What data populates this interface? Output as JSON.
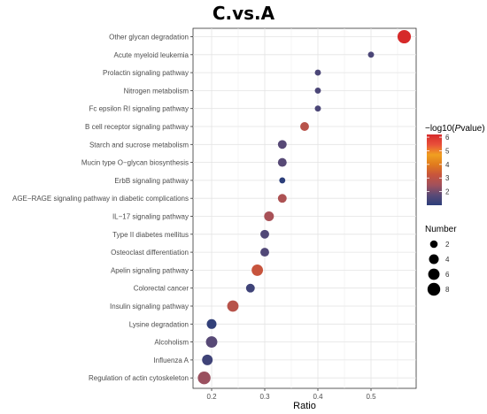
{
  "chart_data": {
    "type": "scatter",
    "title": "C.vs.A",
    "xlabel": "Ratio",
    "ylabel": "",
    "xlim": [
      0.165,
      0.585
    ],
    "x_ticks": [
      {
        "value": 0.2,
        "label": "0.2"
      },
      {
        "value": 0.3,
        "label": "0.3"
      },
      {
        "value": 0.4,
        "label": "0.4"
      },
      {
        "value": 0.5,
        "label": "0.5"
      }
    ],
    "grid": true,
    "points": [
      {
        "term": "Other glycan degradation",
        "ratio": 0.5625,
        "number": 9,
        "neglog10p": 6.2
      },
      {
        "term": "Acute myeloid leukemia",
        "ratio": 0.5,
        "number": 1,
        "neglog10p": 1.5
      },
      {
        "term": "Prolactin signaling pathway",
        "ratio": 0.4,
        "number": 1,
        "neglog10p": 1.5
      },
      {
        "term": "Nitrogen metabolism",
        "ratio": 0.4,
        "number": 1,
        "neglog10p": 1.5
      },
      {
        "term": "Fc epsilon RI signaling pathway",
        "ratio": 0.4,
        "number": 1,
        "neglog10p": 1.5
      },
      {
        "term": "B cell receptor signaling pathway",
        "ratio": 0.375,
        "number": 3,
        "neglog10p": 2.9
      },
      {
        "term": "Starch and sucrose metabolism",
        "ratio": 0.333,
        "number": 3,
        "neglog10p": 1.7
      },
      {
        "term": "Mucin type O−glycan biosynthesis",
        "ratio": 0.333,
        "number": 3,
        "neglog10p": 1.7
      },
      {
        "term": "ErbB signaling pathway",
        "ratio": 0.333,
        "number": 1,
        "neglog10p": 1.0
      },
      {
        "term": "AGE−RAGE signaling pathway in diabetic complications",
        "ratio": 0.333,
        "number": 3,
        "neglog10p": 2.7
      },
      {
        "term": "IL−17 signaling pathway",
        "ratio": 0.308,
        "number": 4,
        "neglog10p": 2.6
      },
      {
        "term": "Type II diabetes mellitus",
        "ratio": 0.3,
        "number": 3,
        "neglog10p": 1.6
      },
      {
        "term": "Osteoclast differentiation",
        "ratio": 0.3,
        "number": 3,
        "neglog10p": 1.6
      },
      {
        "term": "Apelin signaling pathway",
        "ratio": 0.286,
        "number": 6,
        "neglog10p": 3.2
      },
      {
        "term": "Colorectal cancer",
        "ratio": 0.273,
        "number": 3,
        "neglog10p": 1.3
      },
      {
        "term": "Insulin signaling pathway",
        "ratio": 0.24,
        "number": 6,
        "neglog10p": 2.9
      },
      {
        "term": "Lysine degradation",
        "ratio": 0.2,
        "number": 4,
        "neglog10p": 1.1
      },
      {
        "term": "Alcoholism",
        "ratio": 0.2,
        "number": 6,
        "neglog10p": 1.7
      },
      {
        "term": "Influenza A",
        "ratio": 0.192,
        "number": 5,
        "neglog10p": 1.3
      },
      {
        "term": "Regulation of actin cytoskeleton",
        "ratio": 0.186,
        "number": 8,
        "neglog10p": 2.4
      }
    ],
    "color_legend": {
      "title": "−log10(",
      "title_italic": "P",
      "title_end": "value)",
      "ticks": [
        {
          "value": 2,
          "label": "2"
        },
        {
          "value": 3,
          "label": "3"
        },
        {
          "value": 4,
          "label": "4"
        },
        {
          "value": 5,
          "label": "5"
        },
        {
          "value": 6,
          "label": "6"
        }
      ],
      "range": [
        1.0,
        6.2
      ],
      "colors": [
        "#2c3e7a",
        "#5a4a76",
        "#a2515c",
        "#c8543c",
        "#e07a1e",
        "#f0a020",
        "#e8503a",
        "#d62a2a"
      ]
    },
    "size_legend": {
      "title": "Number",
      "items": [
        {
          "value": 2,
          "label": "2"
        },
        {
          "value": 4,
          "label": "4"
        },
        {
          "value": 6,
          "label": "6"
        },
        {
          "value": 8,
          "label": "8"
        }
      ]
    }
  }
}
